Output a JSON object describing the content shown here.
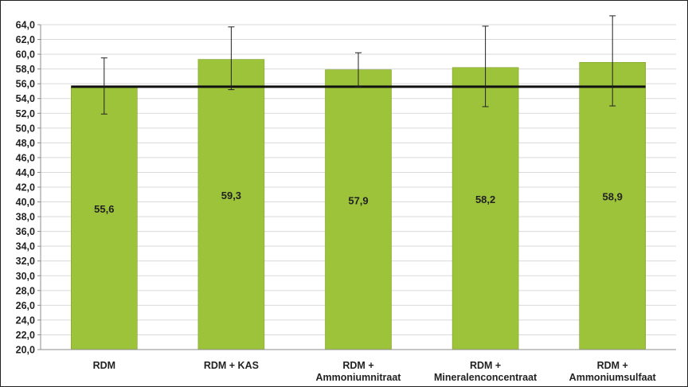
{
  "chart_data": {
    "type": "bar",
    "title": "",
    "xlabel": "",
    "ylabel": "",
    "categories": [
      [
        "RDM"
      ],
      [
        "RDM + KAS"
      ],
      [
        "RDM +",
        "Ammoniumnitraat"
      ],
      [
        "RDM +",
        "Mineralenconcentraat"
      ],
      [
        "RDM +",
        "Ammoniumsulfaat"
      ]
    ],
    "values": [
      55.6,
      59.3,
      57.9,
      58.2,
      58.9
    ],
    "value_labels": [
      "55,6",
      "59,3",
      "57,9",
      "58,2",
      "58,9"
    ],
    "error_low": [
      51.9,
      55.2,
      55.6,
      52.9,
      53.0
    ],
    "error_high": [
      59.5,
      63.7,
      60.2,
      63.8,
      65.2
    ],
    "reference_line": 55.6,
    "ylim": [
      20,
      64
    ],
    "yticks": [
      "20,0",
      "22,0",
      "24,0",
      "26,0",
      "28,0",
      "30,0",
      "32,0",
      "34,0",
      "36,0",
      "38,0",
      "40,0",
      "42,0",
      "44,0",
      "46,0",
      "48,0",
      "50,0",
      "52,0",
      "54,0",
      "56,0",
      "58,0",
      "60,0",
      "62,0",
      "64,0"
    ],
    "ytick_values": [
      20,
      22,
      24,
      26,
      28,
      30,
      32,
      34,
      36,
      38,
      40,
      42,
      44,
      46,
      48,
      50,
      52,
      54,
      56,
      58,
      60,
      62,
      64
    ],
    "grid": true,
    "legend": "none",
    "colors": {
      "bar": "#9dc33b",
      "bar_edge": "#7da02a",
      "grid": "#d9d9d9",
      "reference_line": "#111111",
      "error_bar": "#222222",
      "axis": "#8c8c8c"
    }
  }
}
